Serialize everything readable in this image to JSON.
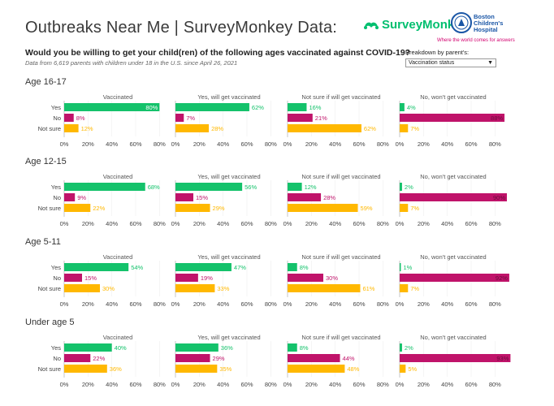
{
  "header": {
    "title": "Outbreaks Near Me | SurveyMonkey Data:",
    "question": "Would you be willing to get your child(ren) of the following ages vaccinated against COVID-19?",
    "subtitle": "Data from 6,619 parents with children under 18 in the U.S. since April 26, 2021"
  },
  "logos": {
    "surveymonkey": "SurveyMonkey",
    "bch_line1": "Boston",
    "bch_line2": "Children's",
    "bch_line3": "Hospital",
    "bch_tagline": "Where the world comes for answers"
  },
  "breakdown": {
    "label": "Breakdown by parent's:",
    "selected": "Vaccination status"
  },
  "colors": {
    "yes": "#14c26b",
    "no": "#c0136a",
    "notsure": "#ffb800",
    "axis": "#bbbbbb"
  },
  "chart_data": {
    "type": "bar",
    "orientation": "horizontal",
    "categories": [
      "Yes",
      "No",
      "Not sure"
    ],
    "xlim": [
      0,
      90
    ],
    "tick_labels": [
      "0%",
      "20%",
      "40%",
      "60%",
      "80%"
    ],
    "ticks": [
      0,
      20,
      40,
      60,
      80
    ],
    "panels": [
      "Vaccinated",
      "Yes, will get vaccinated",
      "Not sure if will get vaccinated",
      "No, won't get vaccinated"
    ],
    "groups": [
      {
        "label": "Age 16-17",
        "values": [
          [
            80,
            8,
            12
          ],
          [
            62,
            7,
            28
          ],
          [
            16,
            21,
            62
          ],
          [
            4,
            88,
            7
          ]
        ]
      },
      {
        "label": "Age 12-15",
        "values": [
          [
            68,
            9,
            22
          ],
          [
            56,
            15,
            29
          ],
          [
            12,
            28,
            59
          ],
          [
            2,
            90,
            7
          ]
        ]
      },
      {
        "label": "Age 5-11",
        "values": [
          [
            54,
            15,
            30
          ],
          [
            47,
            19,
            33
          ],
          [
            8,
            30,
            61
          ],
          [
            1,
            92,
            7
          ]
        ]
      },
      {
        "label": "Under age 5",
        "values": [
          [
            40,
            22,
            36
          ],
          [
            36,
            29,
            35
          ],
          [
            8,
            44,
            48
          ],
          [
            2,
            93,
            5
          ]
        ]
      }
    ]
  }
}
